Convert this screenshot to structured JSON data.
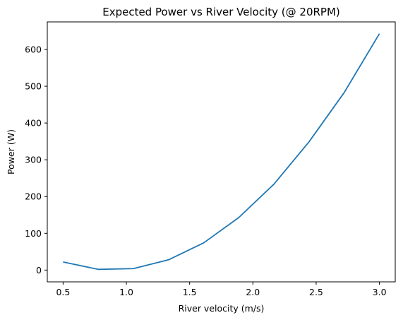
{
  "chart_data": {
    "type": "line",
    "title": "Expected Power vs River Velocity (@ 20RPM)",
    "xlabel": "River velocity (m/s)",
    "ylabel": "Power (W)",
    "xlim": [
      0.375,
      3.125
    ],
    "ylim": [
      -32,
      675
    ],
    "x_ticks": [
      0.5,
      1.0,
      1.5,
      2.0,
      2.5,
      3.0
    ],
    "x_tick_labels": [
      "0.5",
      "1.0",
      "1.5",
      "2.0",
      "2.5",
      "3.0"
    ],
    "y_ticks": [
      0,
      100,
      200,
      300,
      400,
      500,
      600
    ],
    "y_tick_labels": [
      "0",
      "100",
      "200",
      "300",
      "400",
      "500",
      "600"
    ],
    "grid": false,
    "series": [
      {
        "color": "#1f77b4",
        "x": [
          0.5,
          0.778,
          1.056,
          1.333,
          1.611,
          1.889,
          2.167,
          2.444,
          2.722,
          3.0
        ],
        "y": [
          22,
          2,
          4,
          28,
          74,
          143,
          234,
          349,
          483,
          643
        ]
      }
    ]
  }
}
